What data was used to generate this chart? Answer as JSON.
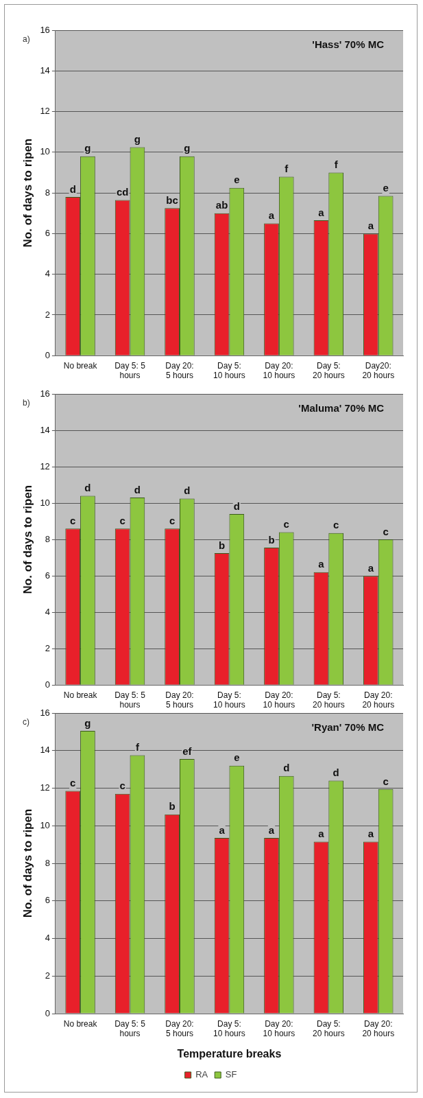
{
  "chart_data": [
    {
      "type": "bar",
      "title": "'Hass' 70% MC",
      "ylabel": "No. of days to ripen",
      "annotations": [
        "a)"
      ],
      "categories": [
        "No break",
        "Day 5: 5 hours",
        "Day 20: 5 hours",
        "Day 5: 10 hours",
        "Day 20: 10 hours",
        "Day 5: 20 hours",
        "Day20: 20 hours"
      ],
      "series": [
        {
          "color": "#e8202a",
          "values": [
            7.8,
            7.65,
            7.25,
            7.0,
            6.5,
            6.65,
            6.0
          ],
          "value_labels": [
            "d",
            "cd",
            "bc",
            "ab",
            "a",
            "a",
            "a"
          ]
        },
        {
          "color": "#8dc63f",
          "values": [
            9.8,
            10.25,
            9.8,
            8.25,
            8.8,
            9.0,
            7.85
          ],
          "value_labels": [
            "g",
            "g",
            "g",
            "e",
            "f",
            "f",
            "e"
          ]
        }
      ],
      "ylim": [
        0,
        16
      ],
      "yticks": [
        0,
        2,
        4,
        6,
        8,
        10,
        12,
        14,
        16
      ],
      "grid": "y"
    },
    {
      "type": "bar",
      "title": "'Maluma' 70% MC",
      "ylabel": "No. of days to ripen",
      "annotations": [
        "b)"
      ],
      "categories": [
        "No break",
        "Day 5: 5 hours",
        "Day 20: 5 hours",
        "Day 5: 10 hours",
        "Day 20: 10 hours",
        "Day 5: 20 hours",
        "Day 20: 20 hours"
      ],
      "series": [
        {
          "color": "#e8202a",
          "values": [
            8.6,
            8.6,
            8.6,
            7.25,
            7.55,
            6.2,
            6.0
          ],
          "value_labels": [
            "c",
            "c",
            "c",
            "b",
            "b",
            "a",
            "a"
          ]
        },
        {
          "color": "#8dc63f",
          "values": [
            10.4,
            10.3,
            10.25,
            9.4,
            8.4,
            8.35,
            8.0
          ],
          "value_labels": [
            "d",
            "d",
            "d",
            "d",
            "c",
            "c",
            "c"
          ]
        }
      ],
      "ylim": [
        0,
        16
      ],
      "yticks": [
        0,
        2,
        4,
        6,
        8,
        10,
        12,
        14,
        16
      ],
      "grid": "y"
    },
    {
      "type": "bar",
      "title": "'Ryan' 70% MC",
      "xlabel": "Temperature breaks",
      "ylabel": "No. of days to ripen",
      "annotations": [
        "c)"
      ],
      "categories": [
        "No break",
        "Day 5: 5 hours",
        "Day 20: 5 hours",
        "Day 5: 10 hours",
        "Day 20: 10 hours",
        "Day 5: 20 hours",
        "Day 20: 20 hours"
      ],
      "series": [
        {
          "name": "RA",
          "color": "#e8202a",
          "values": [
            11.85,
            11.7,
            10.6,
            9.35,
            9.35,
            9.15,
            9.15
          ],
          "value_labels": [
            "c",
            "c",
            "b",
            "a",
            "a",
            "a",
            "a"
          ]
        },
        {
          "name": "SF",
          "color": "#8dc63f",
          "values": [
            15.05,
            13.75,
            13.55,
            13.2,
            12.65,
            12.4,
            11.95
          ],
          "value_labels": [
            "g",
            "f",
            "ef",
            "e",
            "d",
            "d",
            "c"
          ]
        }
      ],
      "ylim": [
        0,
        16
      ],
      "yticks": [
        0,
        2,
        4,
        6,
        8,
        10,
        12,
        14,
        16
      ],
      "grid": "y",
      "legend": "bottom"
    }
  ]
}
